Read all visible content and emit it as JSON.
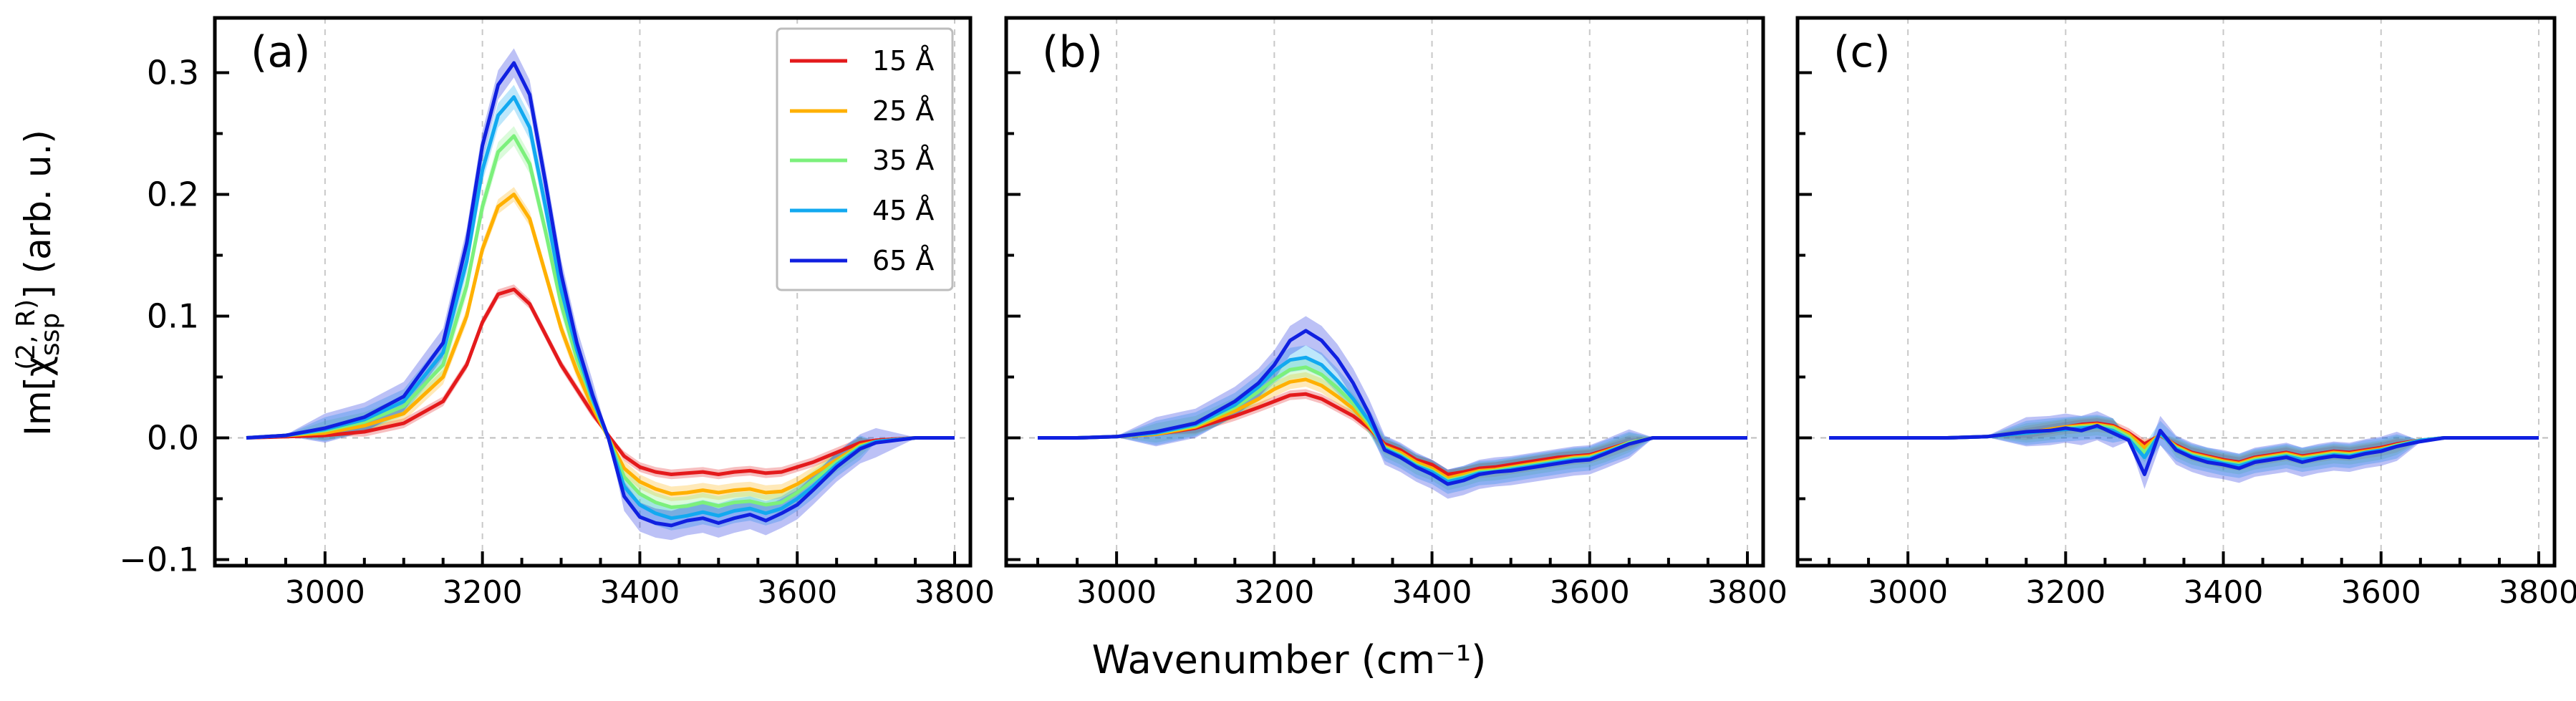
{
  "figure": {
    "xlabel": "Wavenumber (cm⁻¹)",
    "ylabel_main": "Im[χ",
    "ylabel_sub": "ssp",
    "ylabel_sup": "(2, R)",
    "ylabel_tail": "] (arb. u.)"
  },
  "legend": {
    "entries": [
      {
        "label": "15 Å",
        "color": "#e41a1c"
      },
      {
        "label": "25 Å",
        "color": "#ffb000"
      },
      {
        "label": "35 Å",
        "color": "#7cf07c"
      },
      {
        "label": "45 Å",
        "color": "#12a9f0"
      },
      {
        "label": "65 Å",
        "color": "#1020e0"
      }
    ]
  },
  "chart_data": [
    {
      "type": "line",
      "panel_label": "(a)",
      "xlim": [
        2860,
        3820
      ],
      "ylim": [
        -0.105,
        0.345
      ],
      "xticks": [
        3000,
        3200,
        3400,
        3600,
        3800
      ],
      "xtick_labels": [
        "3000",
        "3200",
        "3400",
        "3600",
        "3800"
      ],
      "yticks": [
        -0.1,
        0.0,
        0.1,
        0.2,
        0.3
      ],
      "ytick_labels": [
        "−0.1",
        "0.0",
        "0.1",
        "0.2",
        "0.3"
      ],
      "grid": true,
      "legend_position": "top-right",
      "x": [
        2900,
        2950,
        3000,
        3050,
        3100,
        3150,
        3180,
        3200,
        3220,
        3240,
        3260,
        3280,
        3300,
        3320,
        3340,
        3360,
        3380,
        3400,
        3420,
        3440,
        3460,
        3480,
        3500,
        3520,
        3540,
        3560,
        3580,
        3600,
        3620,
        3650,
        3680,
        3700,
        3750,
        3800
      ],
      "series": [
        {
          "name": "15 Å",
          "values": [
            0.0,
            0.001,
            0.002,
            0.005,
            0.012,
            0.03,
            0.06,
            0.095,
            0.118,
            0.122,
            0.11,
            0.085,
            0.06,
            0.04,
            0.02,
            0.002,
            -0.015,
            -0.024,
            -0.028,
            -0.03,
            -0.029,
            -0.028,
            -0.03,
            -0.028,
            -0.027,
            -0.029,
            -0.028,
            -0.024,
            -0.02,
            -0.012,
            -0.004,
            -0.002,
            0.0,
            0.0
          ]
        },
        {
          "name": "25 Å",
          "values": [
            0.0,
            0.002,
            0.004,
            0.01,
            0.02,
            0.05,
            0.1,
            0.155,
            0.19,
            0.2,
            0.18,
            0.135,
            0.09,
            0.055,
            0.025,
            0.0,
            -0.025,
            -0.036,
            -0.042,
            -0.046,
            -0.045,
            -0.043,
            -0.045,
            -0.043,
            -0.042,
            -0.045,
            -0.044,
            -0.038,
            -0.03,
            -0.018,
            -0.006,
            -0.003,
            0.0,
            0.0
          ]
        },
        {
          "name": "35 Å",
          "values": [
            0.0,
            0.002,
            0.006,
            0.013,
            0.026,
            0.06,
            0.125,
            0.19,
            0.235,
            0.248,
            0.225,
            0.17,
            0.11,
            0.065,
            0.03,
            0.0,
            -0.032,
            -0.046,
            -0.053,
            -0.057,
            -0.056,
            -0.053,
            -0.056,
            -0.053,
            -0.052,
            -0.055,
            -0.053,
            -0.045,
            -0.035,
            -0.02,
            -0.007,
            -0.003,
            0.0,
            0.0
          ]
        },
        {
          "name": "45 Å",
          "values": [
            0.0,
            0.002,
            0.007,
            0.015,
            0.03,
            0.07,
            0.145,
            0.22,
            0.265,
            0.28,
            0.255,
            0.19,
            0.122,
            0.072,
            0.032,
            0.0,
            -0.04,
            -0.055,
            -0.062,
            -0.066,
            -0.064,
            -0.061,
            -0.064,
            -0.06,
            -0.058,
            -0.062,
            -0.058,
            -0.05,
            -0.04,
            -0.022,
            -0.008,
            -0.003,
            0.0,
            0.0
          ]
        },
        {
          "name": "65 Å",
          "values": [
            0.0,
            0.002,
            0.008,
            0.017,
            0.034,
            0.078,
            0.16,
            0.24,
            0.29,
            0.308,
            0.282,
            0.21,
            0.135,
            0.078,
            0.035,
            0.0,
            -0.048,
            -0.065,
            -0.07,
            -0.072,
            -0.068,
            -0.066,
            -0.07,
            -0.066,
            -0.063,
            -0.068,
            -0.062,
            -0.055,
            -0.043,
            -0.024,
            -0.009,
            -0.004,
            0.0,
            0.0
          ]
        }
      ]
    },
    {
      "type": "line",
      "panel_label": "(b)",
      "xlim": [
        2860,
        3820
      ],
      "ylim": [
        -0.105,
        0.345
      ],
      "xticks": [
        3000,
        3200,
        3400,
        3600,
        3800
      ],
      "xtick_labels": [
        "3000",
        "3200",
        "3400",
        "3600",
        "3800"
      ],
      "yticks": [
        -0.1,
        0.0,
        0.1,
        0.2,
        0.3
      ],
      "ytick_labels": [],
      "grid": true,
      "x": [
        2900,
        2950,
        3000,
        3050,
        3100,
        3150,
        3180,
        3200,
        3220,
        3240,
        3260,
        3280,
        3300,
        3320,
        3340,
        3360,
        3380,
        3400,
        3420,
        3440,
        3460,
        3480,
        3500,
        3520,
        3540,
        3560,
        3580,
        3600,
        3620,
        3650,
        3680,
        3700,
        3750,
        3800
      ],
      "series": [
        {
          "name": "15 Å",
          "values": [
            0.0,
            0.0,
            0.001,
            0.003,
            0.008,
            0.018,
            0.025,
            0.03,
            0.035,
            0.036,
            0.032,
            0.025,
            0.018,
            0.008,
            -0.005,
            -0.01,
            -0.018,
            -0.022,
            -0.03,
            -0.028,
            -0.025,
            -0.024,
            -0.022,
            -0.02,
            -0.018,
            -0.016,
            -0.015,
            -0.014,
            -0.01,
            -0.004,
            0.0,
            0.0,
            0.0,
            0.0
          ]
        },
        {
          "name": "25 Å",
          "values": [
            0.0,
            0.0,
            0.001,
            0.003,
            0.009,
            0.022,
            0.032,
            0.04,
            0.046,
            0.048,
            0.043,
            0.034,
            0.024,
            0.01,
            -0.007,
            -0.012,
            -0.02,
            -0.025,
            -0.033,
            -0.03,
            -0.027,
            -0.026,
            -0.024,
            -0.022,
            -0.02,
            -0.018,
            -0.016,
            -0.015,
            -0.011,
            -0.004,
            0.0,
            0.0,
            0.0,
            0.0
          ]
        },
        {
          "name": "35 Å",
          "values": [
            0.0,
            0.0,
            0.001,
            0.004,
            0.01,
            0.025,
            0.038,
            0.048,
            0.056,
            0.058,
            0.052,
            0.041,
            0.028,
            0.012,
            -0.008,
            -0.014,
            -0.022,
            -0.027,
            -0.035,
            -0.032,
            -0.028,
            -0.027,
            -0.025,
            -0.023,
            -0.021,
            -0.019,
            -0.017,
            -0.016,
            -0.012,
            -0.004,
            0.0,
            0.0,
            0.0,
            0.0
          ]
        },
        {
          "name": "45 Å",
          "values": [
            0.0,
            0.0,
            0.001,
            0.004,
            0.011,
            0.027,
            0.042,
            0.055,
            0.064,
            0.066,
            0.06,
            0.047,
            0.032,
            0.014,
            -0.009,
            -0.015,
            -0.023,
            -0.028,
            -0.036,
            -0.033,
            -0.029,
            -0.028,
            -0.026,
            -0.024,
            -0.022,
            -0.02,
            -0.018,
            -0.017,
            -0.012,
            -0.005,
            0.0,
            0.0,
            0.0,
            0.0
          ]
        },
        {
          "name": "65 Å",
          "values": [
            0.0,
            0.0,
            0.001,
            0.005,
            0.012,
            0.03,
            0.045,
            0.06,
            0.08,
            0.088,
            0.08,
            0.065,
            0.045,
            0.02,
            -0.01,
            -0.016,
            -0.024,
            -0.03,
            -0.038,
            -0.035,
            -0.03,
            -0.028,
            -0.027,
            -0.025,
            -0.023,
            -0.021,
            -0.019,
            -0.018,
            -0.013,
            -0.005,
            0.0,
            0.0,
            0.0,
            0.0
          ]
        }
      ]
    },
    {
      "type": "line",
      "panel_label": "(c)",
      "xlim": [
        2860,
        3820
      ],
      "ylim": [
        -0.105,
        0.345
      ],
      "xticks": [
        3000,
        3200,
        3400,
        3600,
        3800
      ],
      "xtick_labels": [
        "3000",
        "3200",
        "3400",
        "3600",
        "3800"
      ],
      "yticks": [
        -0.1,
        0.0,
        0.1,
        0.2,
        0.3
      ],
      "ytick_labels": [],
      "grid": true,
      "x": [
        2900,
        2950,
        3000,
        3050,
        3100,
        3150,
        3180,
        3200,
        3220,
        3240,
        3260,
        3280,
        3300,
        3320,
        3340,
        3360,
        3380,
        3400,
        3420,
        3440,
        3460,
        3480,
        3500,
        3520,
        3540,
        3560,
        3580,
        3600,
        3620,
        3650,
        3680,
        3700,
        3750,
        3800
      ],
      "series": [
        {
          "name": "15 Å",
          "values": [
            0.0,
            0.0,
            0.0,
            0.0,
            0.001,
            0.004,
            0.007,
            0.009,
            0.011,
            0.012,
            0.01,
            0.004,
            -0.005,
            0.002,
            -0.006,
            -0.012,
            -0.015,
            -0.018,
            -0.02,
            -0.016,
            -0.014,
            -0.012,
            -0.015,
            -0.013,
            -0.011,
            -0.012,
            -0.01,
            -0.008,
            -0.005,
            -0.002,
            0.0,
            0.0,
            0.0,
            0.0
          ]
        },
        {
          "name": "25 Å",
          "values": [
            0.0,
            0.0,
            0.0,
            0.0,
            0.001,
            0.004,
            0.007,
            0.009,
            0.01,
            0.011,
            0.009,
            0.003,
            -0.008,
            0.003,
            -0.007,
            -0.013,
            -0.016,
            -0.019,
            -0.021,
            -0.017,
            -0.015,
            -0.013,
            -0.016,
            -0.014,
            -0.012,
            -0.013,
            -0.011,
            -0.009,
            -0.006,
            -0.002,
            0.0,
            0.0,
            0.0,
            0.0
          ]
        },
        {
          "name": "35 Å",
          "values": [
            0.0,
            0.0,
            0.0,
            0.0,
            0.001,
            0.004,
            0.006,
            0.008,
            0.009,
            0.01,
            0.008,
            0.001,
            -0.012,
            0.003,
            -0.008,
            -0.014,
            -0.017,
            -0.02,
            -0.022,
            -0.018,
            -0.016,
            -0.014,
            -0.017,
            -0.015,
            -0.013,
            -0.014,
            -0.012,
            -0.01,
            -0.006,
            -0.002,
            0.0,
            0.0,
            0.0,
            0.0
          ]
        },
        {
          "name": "45 Å",
          "values": [
            0.0,
            0.0,
            0.0,
            0.0,
            0.001,
            0.004,
            0.006,
            0.007,
            0.008,
            0.009,
            0.006,
            -0.001,
            -0.016,
            0.004,
            -0.009,
            -0.015,
            -0.018,
            -0.021,
            -0.023,
            -0.019,
            -0.017,
            -0.015,
            -0.018,
            -0.016,
            -0.014,
            -0.015,
            -0.012,
            -0.01,
            -0.007,
            -0.002,
            0.0,
            0.0,
            0.0,
            0.0
          ]
        },
        {
          "name": "65 Å",
          "values": [
            0.0,
            0.0,
            0.0,
            0.0,
            0.001,
            0.005,
            0.006,
            0.008,
            0.006,
            0.01,
            0.004,
            -0.002,
            -0.03,
            0.006,
            -0.01,
            -0.016,
            -0.02,
            -0.022,
            -0.025,
            -0.02,
            -0.018,
            -0.016,
            -0.02,
            -0.017,
            -0.015,
            -0.016,
            -0.013,
            -0.011,
            -0.007,
            -0.003,
            0.0,
            0.0,
            0.0,
            0.0
          ]
        }
      ]
    }
  ]
}
